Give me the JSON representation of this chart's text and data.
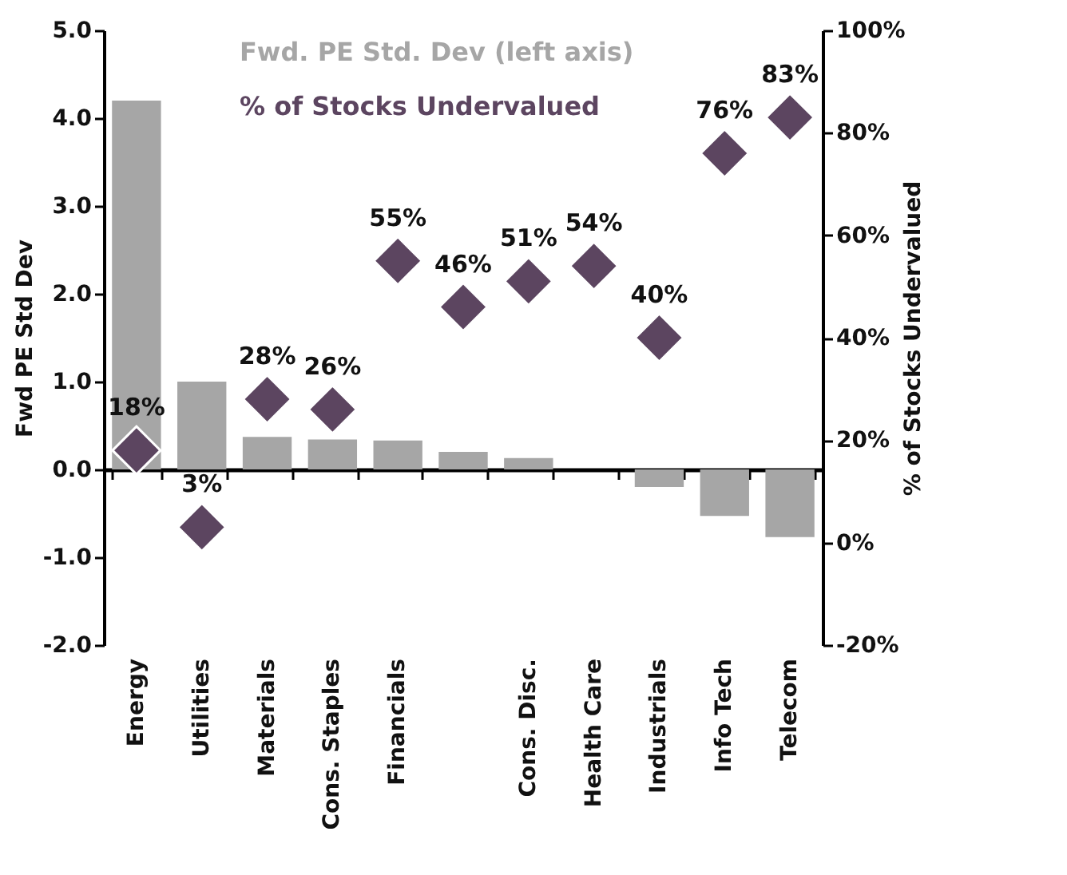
{
  "chart_data": {
    "type": "bar",
    "categories": [
      "Energy",
      "Utilities",
      "Materials",
      "Cons. Staples",
      "Financials",
      null,
      "Cons. Disc.",
      "Health Care",
      "Industrials",
      "Info Tech",
      "Telecom"
    ],
    "ylabel": "Fwd PE Std Dev",
    "y2label": "% of Stocks Undervalued",
    "ylim": [
      -2,
      5
    ],
    "yticks": [
      {
        "value": -2,
        "label": "-2.0"
      },
      {
        "value": -1,
        "label": "-1.0"
      },
      {
        "value": 0,
        "label": "0.0"
      },
      {
        "value": 1,
        "label": "1.0"
      },
      {
        "value": 2,
        "label": "2.0"
      },
      {
        "value": 3,
        "label": "3.0"
      },
      {
        "value": 4,
        "label": "4.0"
      },
      {
        "value": 5,
        "label": "5.0"
      }
    ],
    "y2lim": [
      -20,
      100
    ],
    "y2ticks": [
      {
        "value": -20,
        "label": "-20%"
      },
      {
        "value": 0,
        "label": "0%"
      },
      {
        "value": 20,
        "label": "20%"
      },
      {
        "value": 40,
        "label": "40%"
      },
      {
        "value": 60,
        "label": "60%"
      },
      {
        "value": 80,
        "label": "80%"
      },
      {
        "value": 100,
        "label": "100%"
      }
    ],
    "legend": "top",
    "series": [
      {
        "name": "Fwd. PE Std. Dev (left axis)",
        "color": "#a6a6a6",
        "values": [
          4.2,
          1.0,
          0.37,
          0.34,
          0.33,
          0.2,
          0.13,
          0,
          -0.2,
          -0.53,
          -0.77
        ]
      },
      {
        "name": "% of Stocks Undervalued",
        "type": "scatter",
        "axis": "y2",
        "marker": "diamond",
        "color": "#5c4560",
        "values": [
          18,
          3,
          28,
          26,
          55,
          46,
          51,
          54,
          40,
          76,
          83
        ],
        "value_labels": [
          "18%",
          "3%",
          "28%",
          "26%",
          "55%",
          "46%",
          "51%",
          "54%",
          "40%",
          "76%",
          "83%"
        ]
      }
    ]
  }
}
